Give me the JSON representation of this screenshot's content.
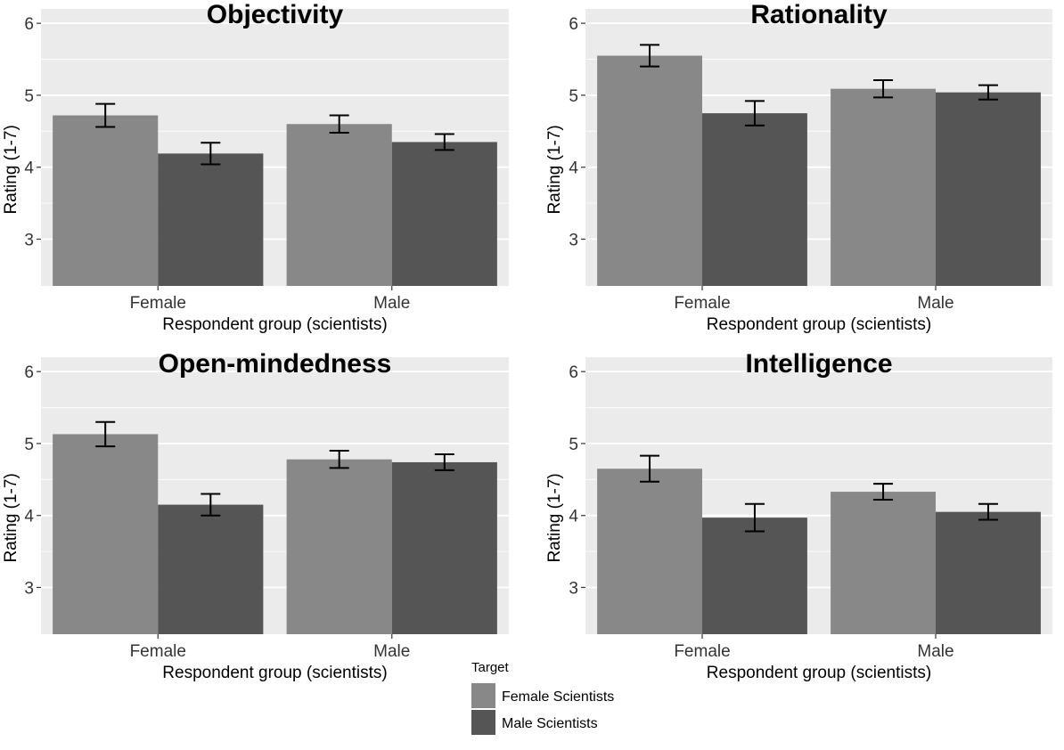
{
  "chart_data": [
    {
      "type": "bar",
      "title": "Objectivity",
      "categories": [
        "Female",
        "Male"
      ],
      "series": [
        {
          "name": "Female Scientists",
          "values": [
            4.72,
            4.6
          ],
          "errors": [
            0.16,
            0.12
          ]
        },
        {
          "name": "Male Scientists",
          "values": [
            4.19,
            4.35
          ],
          "errors": [
            0.15,
            0.11
          ]
        }
      ],
      "xlabel": "Respondent group (scientists)",
      "ylabel": "Rating (1-7)",
      "ylim": [
        2.35,
        6.2
      ],
      "yticks": [
        3,
        4,
        5,
        6
      ],
      "grid": true
    },
    {
      "type": "bar",
      "title": "Rationality",
      "categories": [
        "Female",
        "Male"
      ],
      "series": [
        {
          "name": "Female Scientists",
          "values": [
            5.55,
            5.09
          ],
          "errors": [
            0.15,
            0.12
          ]
        },
        {
          "name": "Male Scientists",
          "values": [
            4.75,
            5.04
          ],
          "errors": [
            0.17,
            0.1
          ]
        }
      ],
      "xlabel": "Respondent group (scientists)",
      "ylabel": "Rating (1-7)",
      "ylim": [
        2.35,
        6.2
      ],
      "yticks": [
        3,
        4,
        5,
        6
      ],
      "grid": true
    },
    {
      "type": "bar",
      "title": "Open-mindedness",
      "categories": [
        "Female",
        "Male"
      ],
      "series": [
        {
          "name": "Female Scientists",
          "values": [
            5.13,
            4.78
          ],
          "errors": [
            0.17,
            0.12
          ]
        },
        {
          "name": "Male Scientists",
          "values": [
            4.15,
            4.74
          ],
          "errors": [
            0.15,
            0.11
          ]
        }
      ],
      "xlabel": "Respondent group (scientists)",
      "ylabel": "Rating (1-7)",
      "ylim": [
        2.35,
        6.2
      ],
      "yticks": [
        3,
        4,
        5,
        6
      ],
      "grid": true
    },
    {
      "type": "bar",
      "title": "Intelligence",
      "categories": [
        "Female",
        "Male"
      ],
      "series": [
        {
          "name": "Female Scientists",
          "values": [
            4.65,
            4.33
          ],
          "errors": [
            0.18,
            0.11
          ]
        },
        {
          "name": "Male Scientists",
          "values": [
            3.97,
            4.05
          ],
          "errors": [
            0.19,
            0.11
          ]
        }
      ],
      "xlabel": "Respondent group (scientists)",
      "ylabel": "Rating (1-7)",
      "ylim": [
        2.35,
        6.2
      ],
      "yticks": [
        3,
        4,
        5,
        6
      ],
      "grid": true
    }
  ],
  "legend": {
    "title": "Target",
    "items": [
      {
        "label": "Female Scientists",
        "color": "#888888"
      },
      {
        "label": "Male Scientists",
        "color": "#555555"
      }
    ]
  },
  "colors": {
    "panel_background": "#ebebeb",
    "gridline": "#ffffff",
    "female_bar": "#888888",
    "male_bar": "#555555",
    "error_bar": "#000000"
  }
}
